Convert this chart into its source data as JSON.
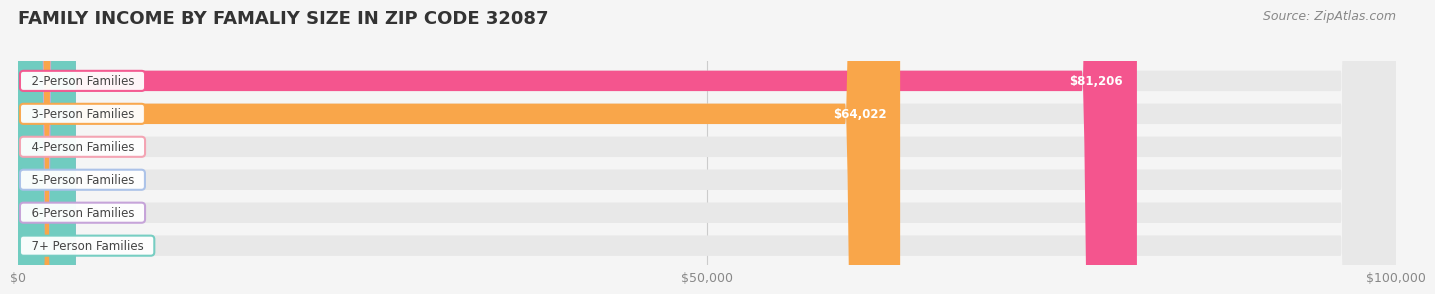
{
  "title": "FAMILY INCOME BY FAMALIY SIZE IN ZIP CODE 32087",
  "source": "Source: ZipAtlas.com",
  "categories": [
    "2-Person Families",
    "3-Person Families",
    "4-Person Families",
    "5-Person Families",
    "6-Person Families",
    "7+ Person Families"
  ],
  "values": [
    81206,
    64022,
    0,
    0,
    0,
    0
  ],
  "bar_colors": [
    "#f4558e",
    "#f9a64a",
    "#f4a0b0",
    "#a8c0e8",
    "#c4a0d8",
    "#70ccc0"
  ],
  "xlim": [
    0,
    100000
  ],
  "xticks": [
    0,
    50000,
    100000
  ],
  "xtick_labels": [
    "$0",
    "$50,000",
    "$100,000"
  ],
  "background_color": "#f5f5f5",
  "bar_bg_color": "#e8e8e8",
  "title_fontsize": 13,
  "source_fontsize": 9,
  "label_fontsize": 8.5
}
